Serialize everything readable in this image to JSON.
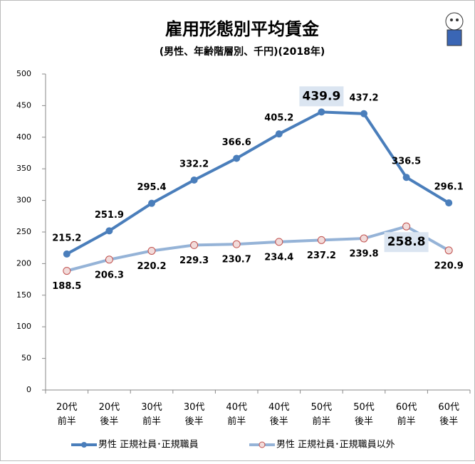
{
  "chart_data": {
    "type": "line",
    "title": "雇用形態別平均賃金",
    "subtitle": "(男性、年齢階層別、千円)(2018年)",
    "categories": [
      "20代\n前半",
      "20代\n後半",
      "30代\n前半",
      "30代\n後半",
      "40代\n前半",
      "40代\n後半",
      "50代\n前半",
      "50代\n後半",
      "60代\n前半",
      "60代\n後半"
    ],
    "series": [
      {
        "name": "男性 正規社員･正規職員",
        "color": "#4a7ebb",
        "values": [
          215.2,
          251.9,
          295.4,
          332.2,
          366.6,
          405.2,
          439.9,
          437.2,
          336.5,
          296.1
        ]
      },
      {
        "name": "男性 正規社員･正規職員以外",
        "color": "#95b3d7",
        "values": [
          188.5,
          206.3,
          220.2,
          229.3,
          230.7,
          234.4,
          237.2,
          239.8,
          258.8,
          220.9
        ]
      }
    ],
    "ylim": [
      0,
      500
    ],
    "yticks": [
      0,
      50,
      100,
      150,
      200,
      250,
      300,
      350,
      400,
      450,
      500
    ],
    "grid": false
  }
}
